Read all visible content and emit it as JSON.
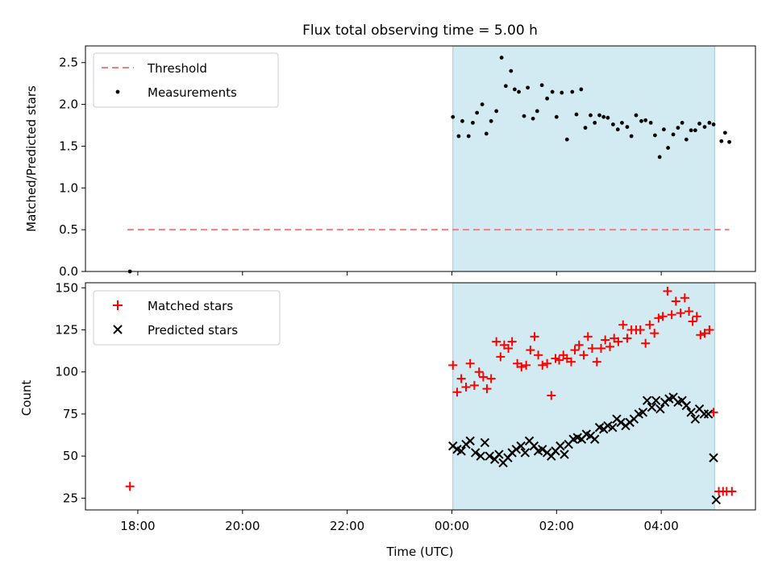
{
  "chart_data": [
    {
      "type": "scatter",
      "title": "Flux total observing time = 5.00 h",
      "xlabel": "",
      "ylabel": "Matched/Predicted stars",
      "x_unit": "hours since 00:00 UTC",
      "xlim": [
        -7.0,
        5.8
      ],
      "ylim": [
        0,
        2.7
      ],
      "yticks": [
        0.0,
        0.5,
        1.0,
        1.5,
        2.0,
        2.5
      ],
      "ytick_labels": [
        "0.0",
        "0.5",
        "1.0",
        "1.5",
        "2.0",
        "2.5"
      ],
      "grid": false,
      "legend_position": "top-left",
      "shaded_region": {
        "x": [
          0.02,
          5.02
        ],
        "color": "#add8e6"
      },
      "threshold": {
        "name": "Threshold",
        "y": 0.5,
        "x": [
          -6.2,
          5.3
        ],
        "color": "#f08080"
      },
      "series": [
        {
          "name": "Measurements",
          "color": "#000000",
          "x": [
            -6.15,
            0.02,
            0.13,
            0.2,
            0.32,
            0.4,
            0.48,
            0.58,
            0.66,
            0.75,
            0.85,
            0.95,
            1.03,
            1.13,
            1.2,
            1.28,
            1.38,
            1.45,
            1.55,
            1.63,
            1.72,
            1.82,
            1.92,
            2.0,
            2.1,
            2.2,
            2.3,
            2.38,
            2.47,
            2.55,
            2.65,
            2.73,
            2.82,
            2.9,
            2.98,
            3.08,
            3.17,
            3.25,
            3.35,
            3.43,
            3.52,
            3.62,
            3.7,
            3.8,
            3.88,
            3.97,
            4.05,
            4.13,
            4.23,
            4.32,
            4.4,
            4.48,
            4.57,
            4.65,
            4.73,
            4.83,
            4.92,
            5.0,
            5.15,
            5.22,
            5.3
          ],
          "y": [
            0.0,
            1.85,
            1.62,
            1.8,
            1.62,
            1.78,
            1.9,
            2.0,
            1.65,
            1.8,
            1.92,
            2.56,
            2.22,
            2.4,
            2.18,
            2.15,
            1.86,
            2.2,
            1.83,
            1.92,
            2.23,
            2.07,
            2.15,
            1.85,
            2.14,
            1.58,
            2.15,
            1.88,
            2.18,
            1.72,
            1.87,
            1.78,
            1.87,
            1.85,
            1.84,
            1.76,
            1.7,
            1.78,
            1.73,
            1.62,
            1.87,
            1.8,
            1.81,
            1.78,
            1.63,
            1.37,
            1.7,
            1.48,
            1.64,
            1.72,
            1.78,
            1.58,
            1.69,
            1.69,
            1.77,
            1.73,
            1.78,
            1.76,
            1.56,
            1.66,
            1.55
          ]
        }
      ]
    },
    {
      "type": "scatter",
      "title": "",
      "xlabel": "Time (UTC)",
      "ylabel": "Count",
      "x_unit": "hours since 00:00 UTC",
      "xlim": [
        -7.0,
        5.8
      ],
      "ylim": [
        18,
        153
      ],
      "xticks": [
        -6,
        -4,
        -2,
        0,
        2,
        4
      ],
      "xtick_labels": [
        "18:00",
        "20:00",
        "22:00",
        "00:00",
        "02:00",
        "04:00"
      ],
      "yticks": [
        25,
        50,
        75,
        100,
        125,
        150
      ],
      "ytick_labels": [
        "25",
        "50",
        "75",
        "100",
        "125",
        "150"
      ],
      "grid": false,
      "legend_position": "top-left",
      "shaded_region": {
        "x": [
          0.02,
          5.02
        ],
        "color": "#add8e6"
      },
      "series": [
        {
          "name": "Matched stars",
          "marker": "plus",
          "color": "#ff0000",
          "x": [
            -6.15,
            0.02,
            0.1,
            0.18,
            0.27,
            0.35,
            0.43,
            0.52,
            0.6,
            0.67,
            0.75,
            0.85,
            0.93,
            1.0,
            1.08,
            1.15,
            1.25,
            1.33,
            1.42,
            1.5,
            1.58,
            1.65,
            1.73,
            1.82,
            1.9,
            1.98,
            2.05,
            2.13,
            2.2,
            2.28,
            2.35,
            2.43,
            2.52,
            2.6,
            2.68,
            2.77,
            2.85,
            2.93,
            3.02,
            3.1,
            3.18,
            3.27,
            3.35,
            3.43,
            3.52,
            3.6,
            3.7,
            3.78,
            3.87,
            3.95,
            4.03,
            4.12,
            4.2,
            4.28,
            4.37,
            4.45,
            4.53,
            4.6,
            4.68,
            4.75,
            4.83,
            4.92,
            5.0,
            5.1,
            5.18,
            5.25,
            5.35
          ],
          "y": [
            32,
            104,
            88,
            96,
            91,
            105,
            92,
            100,
            97,
            90,
            96,
            118,
            109,
            116,
            114,
            118,
            105,
            103,
            104,
            113,
            121,
            110,
            104,
            105,
            86,
            108,
            107,
            110,
            108,
            106,
            113,
            116,
            110,
            121,
            114,
            106,
            114,
            119,
            115,
            120,
            118,
            128,
            120,
            125,
            125,
            125,
            117,
            128,
            123,
            132,
            133,
            148,
            134,
            142,
            135,
            144,
            136,
            130,
            133,
            122,
            123,
            125,
            76,
            29,
            29,
            29,
            29
          ]
        },
        {
          "name": "Predicted stars",
          "marker": "x",
          "color": "#000000",
          "x": [
            0.02,
            0.1,
            0.18,
            0.27,
            0.35,
            0.45,
            0.55,
            0.63,
            0.72,
            0.82,
            0.9,
            0.98,
            1.07,
            1.15,
            1.23,
            1.32,
            1.4,
            1.48,
            1.57,
            1.65,
            1.73,
            1.82,
            1.9,
            1.98,
            2.07,
            2.15,
            2.23,
            2.32,
            2.4,
            2.48,
            2.57,
            2.65,
            2.73,
            2.82,
            2.9,
            2.98,
            3.07,
            3.15,
            3.23,
            3.32,
            3.4,
            3.48,
            3.57,
            3.65,
            3.73,
            3.82,
            3.9,
            3.98,
            4.07,
            4.15,
            4.23,
            4.32,
            4.4,
            4.48,
            4.57,
            4.65,
            4.73,
            4.82,
            4.9,
            5.0,
            5.05
          ],
          "y": [
            56,
            54,
            53,
            57,
            59,
            52,
            50,
            58,
            50,
            48,
            51,
            46,
            49,
            52,
            54,
            56,
            52,
            59,
            56,
            53,
            54,
            52,
            50,
            53,
            56,
            51,
            57,
            60,
            61,
            60,
            63,
            62,
            60,
            67,
            66,
            68,
            67,
            72,
            70,
            68,
            70,
            72,
            75,
            76,
            83,
            79,
            83,
            78,
            82,
            84,
            85,
            82,
            83,
            80,
            76,
            72,
            78,
            75,
            75,
            49,
            24
          ]
        }
      ]
    }
  ]
}
